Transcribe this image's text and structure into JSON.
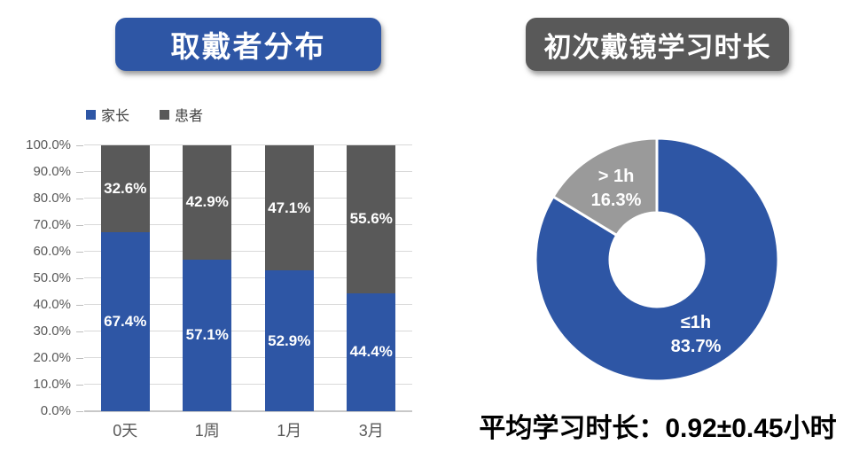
{
  "colors": {
    "blue": "#2e56a5",
    "dark_gray": "#595959",
    "light_gray": "#9a9a9a",
    "gridline": "#d9d9d9",
    "tick_text": "#595959"
  },
  "left_banner_title": "取戴者分布",
  "right_banner_title": "初次戴镜学习时长",
  "chart_data": [
    {
      "type": "bar",
      "subtype": "stacked-percent",
      "title": "取戴者分布",
      "categories": [
        "0天",
        "1周",
        "1月",
        "3月"
      ],
      "series": [
        {
          "name": "家长",
          "color": "#2e56a5",
          "values": [
            67.4,
            57.1,
            52.9,
            44.4
          ],
          "labels": [
            "67.4%",
            "57.1%",
            "52.9%",
            "44.4%"
          ]
        },
        {
          "name": "患者",
          "color": "#595959",
          "values": [
            32.6,
            42.9,
            47.1,
            55.6
          ],
          "labels": [
            "32.6%",
            "42.9%",
            "47.1%",
            "55.6%"
          ]
        }
      ],
      "y_ticks": [
        "0.0%",
        "10.0%",
        "20.0%",
        "30.0%",
        "40.0%",
        "50.0%",
        "60.0%",
        "70.0%",
        "80.0%",
        "90.0%",
        "100.0%"
      ],
      "ylim": [
        0,
        100
      ],
      "grid": true,
      "legend_position": "top-left"
    },
    {
      "type": "pie",
      "subtype": "donut",
      "title": "初次戴镜学习时长",
      "slices": [
        {
          "label": "≤1h",
          "value": 83.7,
          "color": "#2e56a5",
          "text": "≤1h\n83.7%"
        },
        {
          "label": "> 1h",
          "value": 16.3,
          "color": "#9a9a9a",
          "text": "> 1h\n16.3%"
        }
      ],
      "start_angle_deg": 0,
      "direction": "clockwise",
      "inner_radius_ratio": 0.39,
      "separator_color": "#ffffff",
      "annotation": "平均学习时长：0.92±0.45小时"
    }
  ]
}
